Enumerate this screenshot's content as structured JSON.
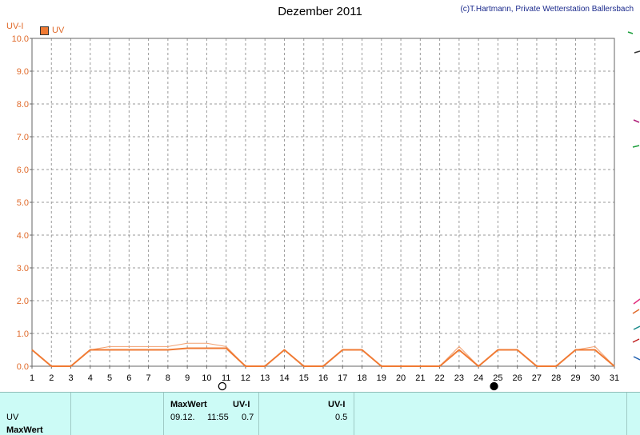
{
  "header": {
    "title": "Dezember 2011",
    "credit": "(c)T.Hartmann, Private Wetterstation Ballersbach",
    "y_axis_unit": "UV-I",
    "legend_label": "UV"
  },
  "chart_data": {
    "type": "line",
    "title": "Dezember 2011",
    "ylabel": "UV-I",
    "xlabel": "",
    "xlim": [
      1,
      31
    ],
    "ylim": [
      0,
      10
    ],
    "x_ticks": [
      "1",
      "2",
      "3",
      "4",
      "5",
      "6",
      "7",
      "8",
      "9",
      "10",
      "11",
      "12",
      "13",
      "14",
      "15",
      "16",
      "17",
      "18",
      "19",
      "20",
      "21",
      "22",
      "23",
      "24",
      "25",
      "26",
      "27",
      "28",
      "29",
      "30",
      "31"
    ],
    "y_ticks": [
      "0.0",
      "1.0",
      "2.0",
      "3.0",
      "4.0",
      "5.0",
      "6.0",
      "7.0",
      "8.0",
      "9.0",
      "10.0"
    ],
    "grid": true,
    "colors": {
      "primary": "#f07a33",
      "secondary": "#f2a070",
      "axis_text": "#e06a2a"
    },
    "series": [
      {
        "name": "UV",
        "x": [
          1,
          2,
          3,
          4,
          5,
          6,
          7,
          8,
          9,
          10,
          11,
          12,
          13,
          14,
          15,
          16,
          17,
          18,
          19,
          20,
          21,
          22,
          23,
          24,
          25,
          26,
          27,
          28,
          29,
          30,
          31
        ],
        "values": [
          0.5,
          0.0,
          0.0,
          0.5,
          0.5,
          0.5,
          0.5,
          0.5,
          0.55,
          0.55,
          0.55,
          0.0,
          0.0,
          0.5,
          0.0,
          0.0,
          0.5,
          0.5,
          0.0,
          0.0,
          0.0,
          0.0,
          0.5,
          0.0,
          0.5,
          0.5,
          0.0,
          0.0,
          0.5,
          0.5,
          0.0
        ]
      },
      {
        "name": "MaxWert",
        "x": [
          1,
          2,
          3,
          4,
          5,
          6,
          7,
          8,
          9,
          10,
          11,
          12,
          13,
          14,
          15,
          16,
          17,
          18,
          19,
          20,
          21,
          22,
          23,
          24,
          25,
          26,
          27,
          28,
          29,
          30,
          31
        ],
        "values": [
          0.5,
          0.0,
          0.0,
          0.5,
          0.6,
          0.6,
          0.6,
          0.6,
          0.7,
          0.7,
          0.6,
          0.0,
          0.0,
          0.5,
          0.0,
          0.0,
          0.5,
          0.5,
          0.0,
          0.0,
          0.0,
          0.0,
          0.6,
          0.0,
          0.5,
          0.5,
          0.0,
          0.0,
          0.5,
          0.6,
          0.0
        ]
      }
    ],
    "moon_phases": [
      {
        "day": 10.8,
        "phase": "full"
      },
      {
        "day": 24.8,
        "phase": "new"
      }
    ]
  },
  "footer": {
    "row1_label": "UV",
    "row2_label": "MaxWert",
    "max_header": "MaxWert",
    "max_date": "09.12.",
    "max_time": "11:55",
    "unit_header_1": "UV-I",
    "max_value": "0.7",
    "unit_header_2": "UV-I",
    "avg_value": "0.5"
  }
}
